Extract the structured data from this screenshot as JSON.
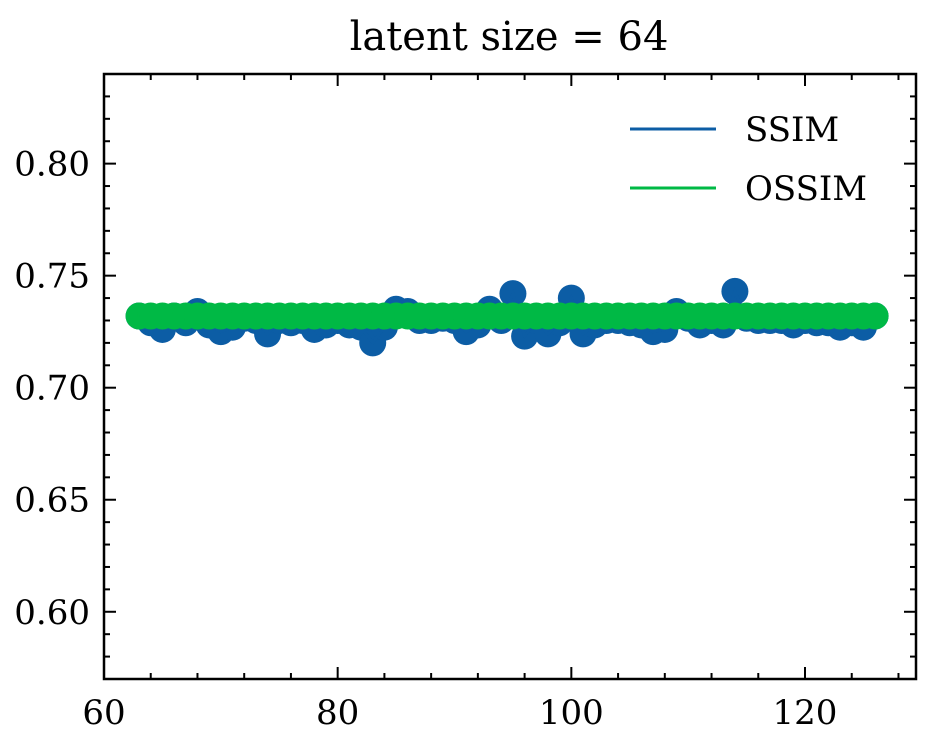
{
  "chart_data": {
    "type": "line",
    "title": "latent size = 64",
    "xlabel": "",
    "ylabel": "",
    "xlim": [
      60,
      129.5
    ],
    "ylim": [
      0.57,
      0.84
    ],
    "x_ticks": [
      60,
      80,
      100,
      120
    ],
    "x_tick_labels": [
      "60",
      "80",
      "100",
      "120"
    ],
    "y_ticks": [
      0.6,
      0.65,
      0.7,
      0.75,
      0.8
    ],
    "y_tick_labels": [
      "0.60",
      "0.65",
      "0.70",
      "0.75",
      "0.80"
    ],
    "grid": false,
    "legend_position": "top-right",
    "x": [
      63,
      64,
      65,
      66,
      67,
      68,
      69,
      70,
      71,
      72,
      73,
      74,
      75,
      76,
      77,
      78,
      79,
      80,
      81,
      82,
      83,
      84,
      85,
      86,
      87,
      88,
      89,
      90,
      91,
      92,
      93,
      94,
      95,
      96,
      97,
      98,
      99,
      100,
      101,
      102,
      103,
      104,
      105,
      106,
      107,
      108,
      109,
      110,
      111,
      112,
      113,
      114,
      115,
      116,
      117,
      118,
      119,
      120,
      121,
      122,
      123,
      124,
      125,
      126
    ],
    "series": [
      {
        "name": "SSIM",
        "color": "#0C5DA5",
        "values": [
          0.732,
          0.729,
          0.726,
          0.732,
          0.729,
          0.734,
          0.728,
          0.725,
          0.727,
          0.731,
          0.73,
          0.724,
          0.73,
          0.729,
          0.73,
          0.726,
          0.728,
          0.73,
          0.728,
          0.727,
          0.72,
          0.727,
          0.735,
          0.734,
          0.73,
          0.73,
          0.731,
          0.73,
          0.725,
          0.728,
          0.735,
          0.73,
          0.742,
          0.723,
          0.73,
          0.724,
          0.729,
          0.74,
          0.724,
          0.728,
          0.73,
          0.73,
          0.729,
          0.728,
          0.725,
          0.726,
          0.734,
          0.731,
          0.728,
          0.73,
          0.728,
          0.743,
          0.731,
          0.73,
          0.73,
          0.73,
          0.728,
          0.73,
          0.729,
          0.729,
          0.727,
          0.729,
          0.727,
          0.732
        ]
      },
      {
        "name": "OSSIM",
        "color": "#00B945",
        "values": [
          0.732,
          0.732,
          0.732,
          0.732,
          0.732,
          0.732,
          0.732,
          0.732,
          0.732,
          0.732,
          0.732,
          0.732,
          0.732,
          0.732,
          0.732,
          0.732,
          0.732,
          0.732,
          0.732,
          0.732,
          0.732,
          0.732,
          0.732,
          0.732,
          0.732,
          0.732,
          0.732,
          0.732,
          0.732,
          0.732,
          0.732,
          0.732,
          0.732,
          0.732,
          0.732,
          0.732,
          0.732,
          0.732,
          0.732,
          0.732,
          0.732,
          0.732,
          0.732,
          0.732,
          0.732,
          0.732,
          0.732,
          0.732,
          0.732,
          0.732,
          0.732,
          0.732,
          0.732,
          0.732,
          0.732,
          0.732,
          0.732,
          0.732,
          0.732,
          0.732,
          0.732,
          0.732,
          0.732,
          0.732
        ]
      }
    ]
  }
}
